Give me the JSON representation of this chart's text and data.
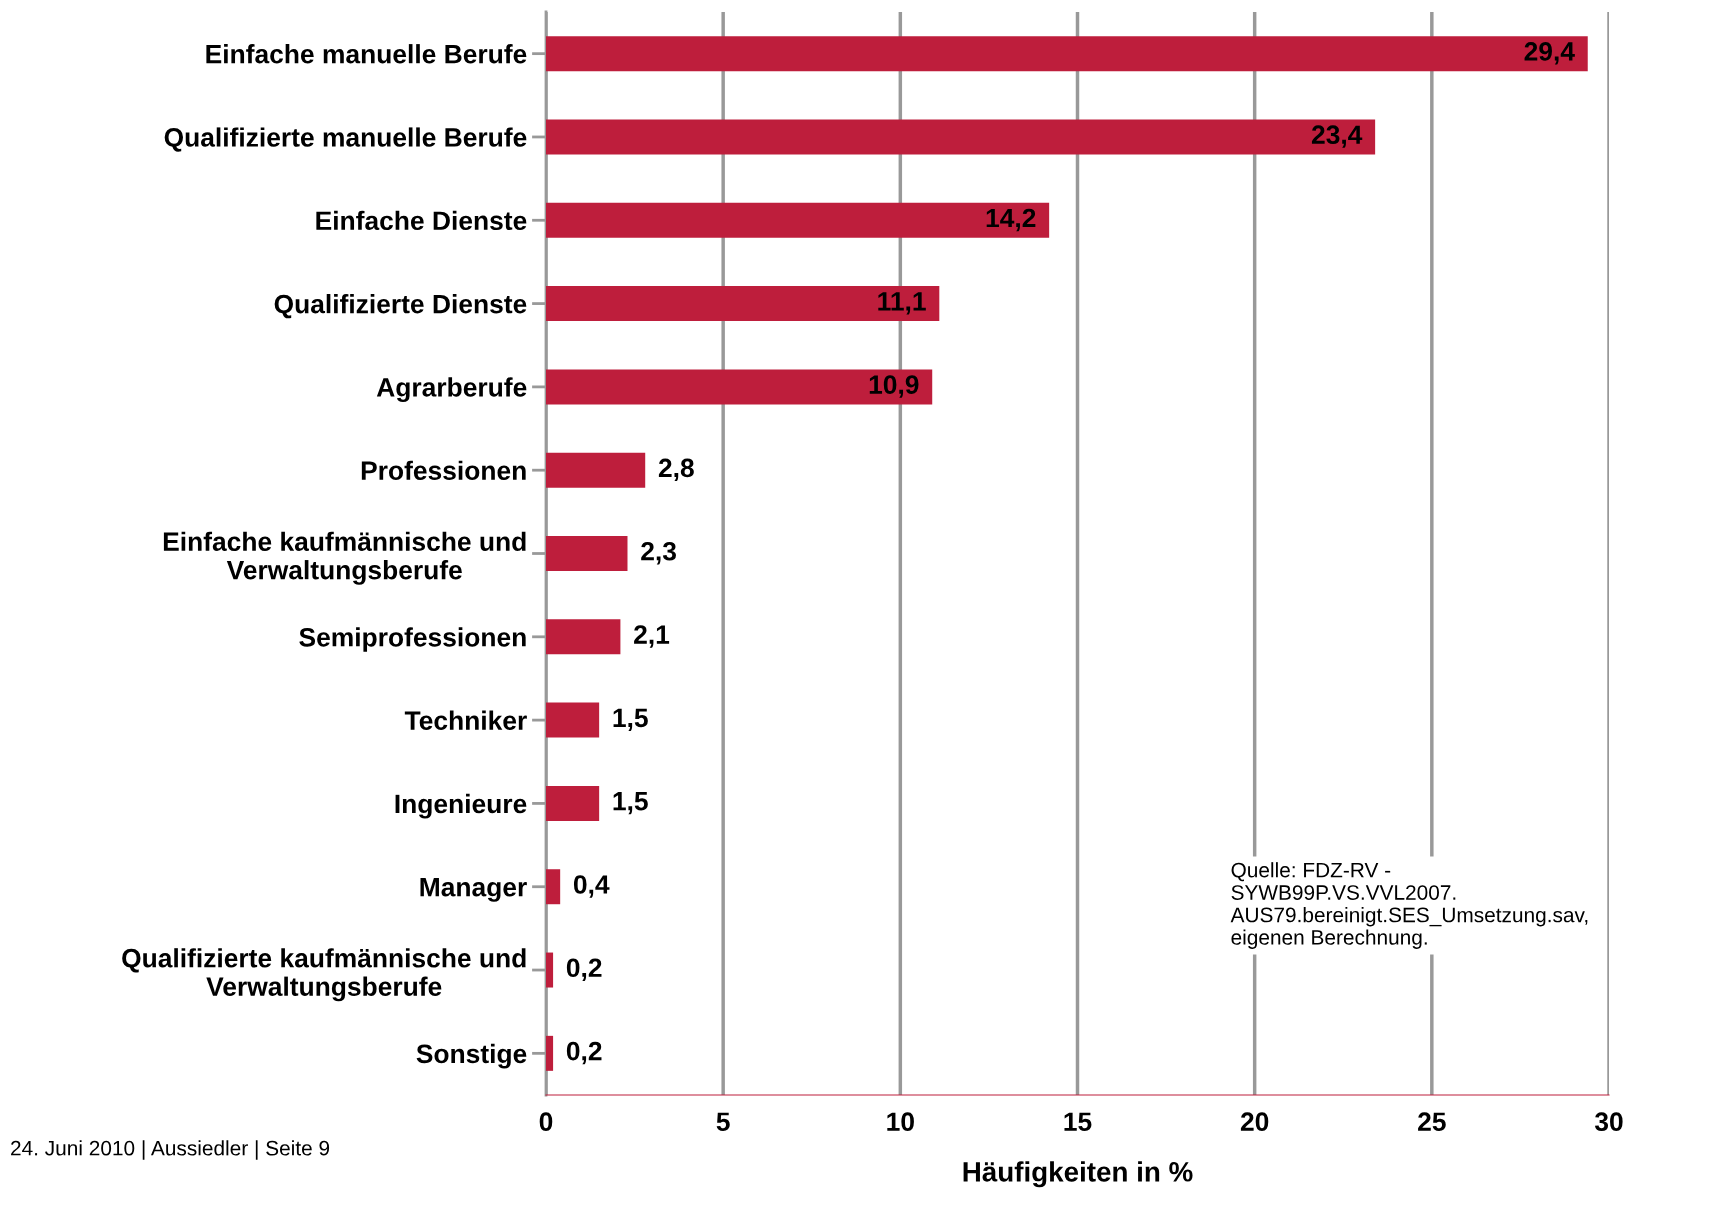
{
  "chart_data": {
    "type": "bar",
    "orientation": "horizontal",
    "xlabel": "Häufigkeiten in %",
    "categories": [
      "Einfache manuelle Berufe",
      "Qualifizierte manuelle Berufe",
      "Einfache Dienste",
      "Qualifizierte Dienste",
      "Agrarberufe",
      "Professionen",
      "Einfache kaufmännische und\nVerwaltungsberufe",
      "Semiprofessionen",
      "Techniker",
      "Ingenieure",
      "Manager",
      "Qualifizierte kaufmännische und\nVerwaltungsberufe",
      "Sonstige"
    ],
    "values": [
      29.4,
      23.4,
      14.2,
      11.1,
      10.9,
      2.8,
      2.3,
      2.1,
      1.5,
      1.5,
      0.4,
      0.2,
      0.2
    ],
    "value_labels": [
      "29,4",
      "23,4",
      "14,2",
      "11,1",
      "10,9",
      "2,8",
      "2,3",
      "2,1",
      "1,5",
      "1,5",
      "0,4",
      "0,2",
      "0,2"
    ],
    "color": "#be1e3c",
    "xlim": [
      0,
      30
    ],
    "xticks": [
      0,
      5,
      10,
      15,
      20,
      25,
      30
    ],
    "grid": "x",
    "annotations": [
      "Quelle: FDZ-RV -\nSYWB99P.VS.VVL2007.\nAUS79.bereinigt.SES_Umsetzung.sav,\neigenen Berechnung.",
      "24. Juni 2010 | Aussiedler | Seite 9"
    ]
  }
}
